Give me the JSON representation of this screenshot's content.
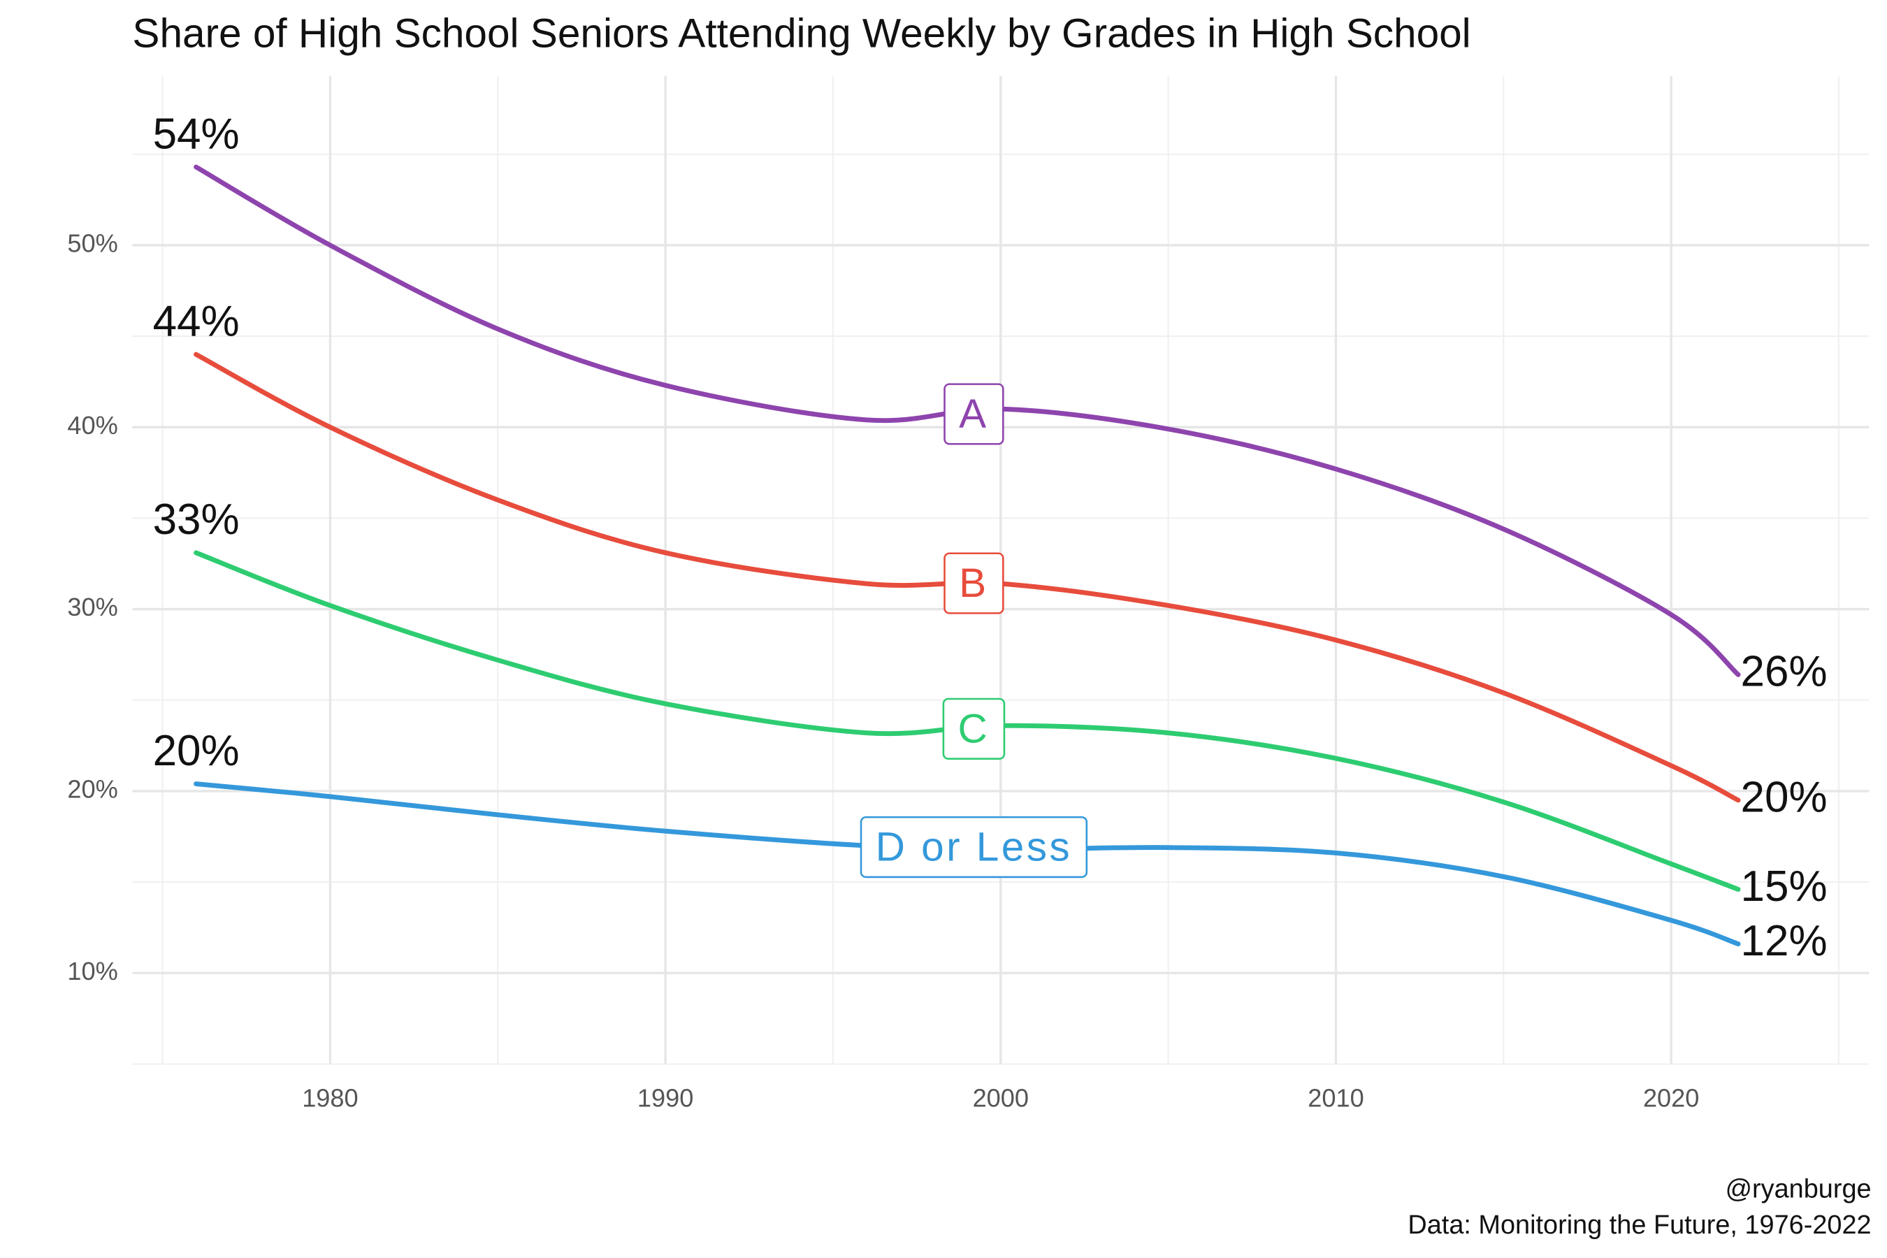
{
  "chart_data": {
    "type": "line",
    "title": "Share of High School Seniors Attending Weekly by Grades in High School",
    "caption": [
      "@ryanburge",
      "Data: Monitoring the Future, 1976-2022"
    ],
    "x": [
      1976,
      1980,
      1985,
      1990,
      1996,
      2000,
      2005,
      2010,
      2015,
      2020,
      2022
    ],
    "xlim": [
      1974.1,
      2025.9
    ],
    "xticks": [
      1980,
      1990,
      2000,
      2010,
      2020
    ],
    "ylim": [
      5,
      59.3
    ],
    "yticks": [
      {
        "value": 10,
        "label": "10%"
      },
      {
        "value": 20,
        "label": "20%"
      },
      {
        "value": 30,
        "label": "30%"
      },
      {
        "value": 40,
        "label": "40%"
      },
      {
        "value": 50,
        "label": "50%"
      }
    ],
    "grid": true,
    "series": [
      {
        "name": "A",
        "color": "#8e44ad",
        "values": [
          54.3,
          50,
          45.4,
          42.3,
          40.4,
          41,
          39.9,
          37.7,
          34.4,
          29.7,
          26.4
        ],
        "value_labels": [
          "54%",
          null,
          null,
          null,
          null,
          null,
          null,
          null,
          null,
          null,
          "26%"
        ]
      },
      {
        "name": "B",
        "color": "#e74c3c",
        "values": [
          44,
          40,
          36,
          33.1,
          31.4,
          31.4,
          30.2,
          28.3,
          25.4,
          21.4,
          19.5
        ],
        "value_labels": [
          "44%",
          null,
          null,
          null,
          null,
          null,
          null,
          null,
          null,
          null,
          "20%"
        ]
      },
      {
        "name": "C",
        "color": "#2ecc71",
        "values": [
          33.1,
          30.2,
          27.2,
          24.8,
          23.2,
          23.6,
          23.2,
          21.8,
          19.4,
          16,
          14.6
        ],
        "value_labels": [
          "33%",
          null,
          null,
          null,
          null,
          null,
          null,
          null,
          null,
          null,
          "15%"
        ]
      },
      {
        "name": "D or Less",
        "color": "#3498db",
        "values": [
          20.4,
          19.7,
          18.7,
          17.8,
          17,
          16.8,
          16.9,
          16.6,
          15.3,
          12.9,
          11.6
        ],
        "value_labels": [
          "20%",
          null,
          null,
          null,
          null,
          null,
          null,
          null,
          null,
          null,
          "12%"
        ]
      }
    ]
  }
}
